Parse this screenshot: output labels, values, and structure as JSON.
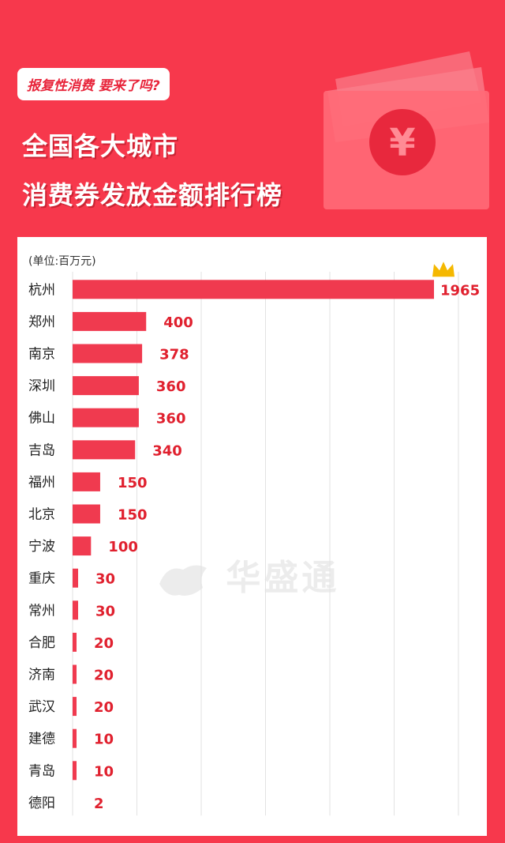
{
  "header": {
    "tag": "报复性消费 要来了吗?",
    "title_line1": "全国各大城市",
    "title_line2": "消费券发放金额排行榜"
  },
  "watermark": {
    "text": "华盛通",
    "icon": "bull-logo-icon"
  },
  "colors": {
    "background": "#f7384c",
    "bar": "#f03a4f",
    "value_label": "#e0202e",
    "crown": "#f5b800"
  },
  "chart_data": {
    "type": "bar",
    "orientation": "horizontal",
    "unit_label": "(单位:百万元)",
    "categories": [
      "杭州",
      "郑州",
      "南京",
      "深圳",
      "佛山",
      "吉岛",
      "福州",
      "北京",
      "宁波",
      "重庆",
      "常州",
      "合肥",
      "济南",
      "武汉",
      "建德",
      "青岛",
      "德阳"
    ],
    "values": [
      1965,
      400,
      378,
      360,
      360,
      340,
      150,
      150,
      100,
      30,
      30,
      20,
      20,
      20,
      10,
      10,
      2
    ],
    "grid": true,
    "top_marker": "crown-icon"
  }
}
